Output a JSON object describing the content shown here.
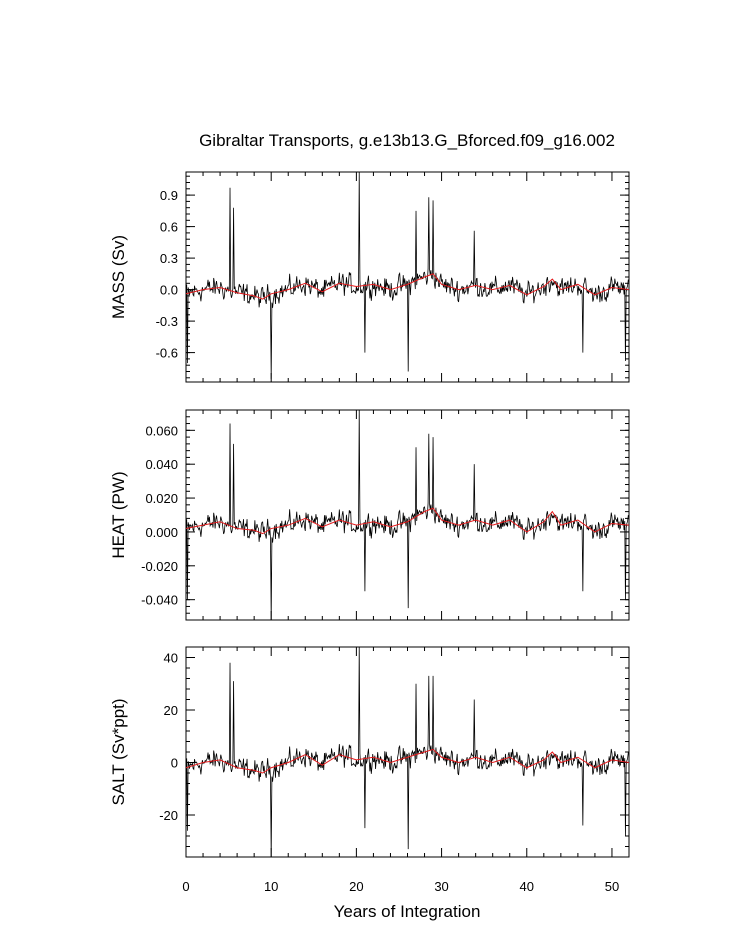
{
  "figure": {
    "title": "Gibraltar Transports, g.e13b13.G_Bforced.f09_g16.002",
    "xlabel": "Years of Integration"
  },
  "chart_data": {
    "type": "line",
    "title": "Gibraltar Transports, g.e13b13.G_Bforced.f09_g16.002",
    "xlabel": "Years of Integration",
    "xlim": [
      0,
      52
    ],
    "xticks": [
      0,
      10,
      20,
      30,
      40,
      50
    ],
    "line_colors": {
      "monthly": "#000000",
      "running_mean": "#e41a1c"
    },
    "panels": [
      {
        "ylabel": "MASS (Sv)",
        "ylim": [
          -0.88,
          1.12
        ],
        "yticks": [
          -0.6,
          -0.3,
          0.0,
          0.3,
          0.6,
          0.9
        ],
        "yticklabels": [
          "-0.6",
          "-0.3",
          "0.0",
          "0.3",
          "0.6",
          "0.9"
        ],
        "spikes": [
          [
            0.2,
            -0.7
          ],
          [
            5.2,
            0.97
          ],
          [
            5.6,
            0.78
          ],
          [
            10.0,
            -0.85
          ],
          [
            20.3,
            1.12
          ],
          [
            21.0,
            -0.6
          ],
          [
            26.1,
            -0.78
          ],
          [
            27.0,
            0.75
          ],
          [
            28.5,
            0.88
          ],
          [
            29.0,
            0.85
          ],
          [
            33.8,
            0.56
          ],
          [
            46.6,
            -0.6
          ],
          [
            51.6,
            -0.68
          ]
        ],
        "running_mean": [
          [
            0,
            -0.04
          ],
          [
            2,
            0.0
          ],
          [
            4,
            0.02
          ],
          [
            6,
            -0.03
          ],
          [
            8,
            -0.06
          ],
          [
            9,
            -0.09
          ],
          [
            10,
            -0.04
          ],
          [
            12,
            0.0
          ],
          [
            14,
            0.06
          ],
          [
            16,
            -0.02
          ],
          [
            18,
            0.06
          ],
          [
            20,
            0.03
          ],
          [
            22,
            0.05
          ],
          [
            24,
            0.0
          ],
          [
            26,
            0.05
          ],
          [
            28,
            0.12
          ],
          [
            29,
            0.15
          ],
          [
            30,
            0.05
          ],
          [
            32,
            0.0
          ],
          [
            34,
            0.04
          ],
          [
            36,
            0.0
          ],
          [
            38,
            0.04
          ],
          [
            40,
            -0.05
          ],
          [
            42,
            0.03
          ],
          [
            43,
            0.1
          ],
          [
            44,
            0.0
          ],
          [
            46,
            0.05
          ],
          [
            48,
            -0.05
          ],
          [
            50,
            0.02
          ],
          [
            52,
            0.0
          ]
        ]
      },
      {
        "ylabel": "HEAT (PW)",
        "ylim": [
          -0.052,
          0.072
        ],
        "yticks": [
          -0.04,
          -0.02,
          0.0,
          0.02,
          0.04,
          0.06
        ],
        "yticklabels": [
          "-0.040",
          "-0.020",
          "0.000",
          "0.020",
          "0.040",
          "0.060"
        ],
        "spikes": [
          [
            0.2,
            -0.04
          ],
          [
            5.2,
            0.064
          ],
          [
            5.6,
            0.052
          ],
          [
            10.0,
            -0.052
          ],
          [
            20.3,
            0.072
          ],
          [
            21.0,
            -0.035
          ],
          [
            26.1,
            -0.045
          ],
          [
            27.0,
            0.05
          ],
          [
            28.5,
            0.058
          ],
          [
            29.0,
            0.056
          ],
          [
            33.8,
            0.04
          ],
          [
            46.6,
            -0.035
          ],
          [
            51.6,
            -0.04
          ]
        ],
        "running_mean": [
          [
            0,
            0.002
          ],
          [
            2,
            0.004
          ],
          [
            4,
            0.006
          ],
          [
            6,
            0.002
          ],
          [
            8,
            0.001
          ],
          [
            9,
            -0.001
          ],
          [
            10,
            0.002
          ],
          [
            12,
            0.004
          ],
          [
            14,
            0.008
          ],
          [
            16,
            0.003
          ],
          [
            18,
            0.007
          ],
          [
            20,
            0.004
          ],
          [
            22,
            0.006
          ],
          [
            24,
            0.003
          ],
          [
            26,
            0.006
          ],
          [
            28,
            0.012
          ],
          [
            29,
            0.014
          ],
          [
            30,
            0.007
          ],
          [
            32,
            0.004
          ],
          [
            34,
            0.007
          ],
          [
            36,
            0.004
          ],
          [
            38,
            0.007
          ],
          [
            40,
            0.0
          ],
          [
            42,
            0.006
          ],
          [
            43,
            0.012
          ],
          [
            44,
            0.004
          ],
          [
            46,
            0.007
          ],
          [
            48,
            0.0
          ],
          [
            50,
            0.005
          ],
          [
            52,
            0.004
          ]
        ]
      },
      {
        "ylabel": "SALT (Sv*ppt)",
        "ylim": [
          -36,
          44
        ],
        "yticks": [
          -20,
          0,
          20,
          40
        ],
        "yticklabels": [
          "-20",
          "0",
          "20",
          "40"
        ],
        "spikes": [
          [
            0.2,
            -26
          ],
          [
            5.2,
            38
          ],
          [
            5.6,
            31
          ],
          [
            10.0,
            -36
          ],
          [
            20.3,
            44
          ],
          [
            21.0,
            -25
          ],
          [
            26.1,
            -33
          ],
          [
            27.0,
            30
          ],
          [
            28.5,
            33
          ],
          [
            29.0,
            33
          ],
          [
            33.8,
            24
          ],
          [
            46.6,
            -24
          ],
          [
            51.6,
            -28
          ]
        ],
        "running_mean": [
          [
            0,
            -2
          ],
          [
            2,
            0
          ],
          [
            4,
            1
          ],
          [
            6,
            -2
          ],
          [
            8,
            -3
          ],
          [
            9,
            -4
          ],
          [
            10,
            -2
          ],
          [
            12,
            0
          ],
          [
            14,
            3
          ],
          [
            16,
            -1
          ],
          [
            18,
            3
          ],
          [
            20,
            1
          ],
          [
            22,
            2
          ],
          [
            24,
            0
          ],
          [
            26,
            2
          ],
          [
            28,
            4
          ],
          [
            29,
            5
          ],
          [
            30,
            2
          ],
          [
            32,
            0
          ],
          [
            34,
            2
          ],
          [
            36,
            0
          ],
          [
            38,
            2
          ],
          [
            40,
            -2
          ],
          [
            42,
            1
          ],
          [
            43,
            4
          ],
          [
            44,
            0
          ],
          [
            46,
            2
          ],
          [
            48,
            -2
          ],
          [
            50,
            1
          ],
          [
            52,
            0
          ]
        ]
      }
    ]
  }
}
